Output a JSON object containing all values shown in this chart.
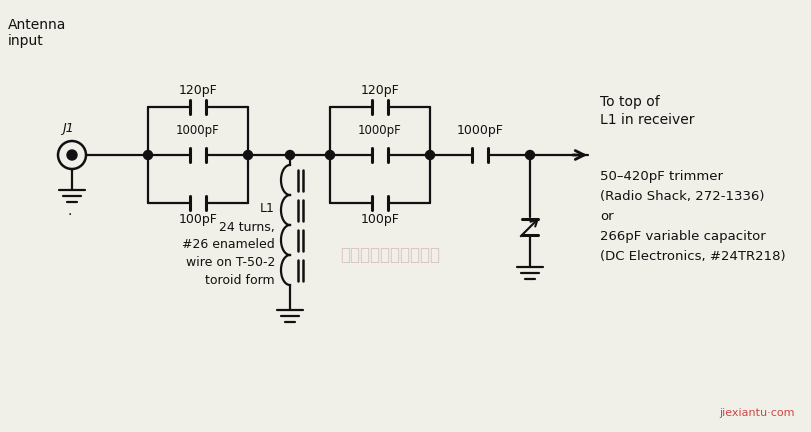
{
  "bg_color": "#f0efe8",
  "line_color": "#111111",
  "text_color": "#111111",
  "watermark_color": "#c8a0a0",
  "annotations": {
    "antenna_input": "Antenna\ninput",
    "j1": "J1",
    "l1_label": "L1\n24 turns,\n#26 enameled\nwire on T-50-2\ntoroid form",
    "cap_120_1": "120pF",
    "cap_120_2": "120pF",
    "cap_1000_1": "1000pF",
    "cap_1000_2": "1000pF",
    "cap_100_1": "100pF",
    "cap_100_2": "100pF",
    "cap_1000_r": "1000pF",
    "to_receiver": "To top of\nL1 in receiver",
    "trimmer_info": "50–420pF trimmer\n(Radio Shack, 272-1336)\nor\n266pF variable capacitor\n(DC Electronics, #24TR218)",
    "watermark": "杭州将睷科技有限公司",
    "logo": "jiexiantu·com"
  }
}
